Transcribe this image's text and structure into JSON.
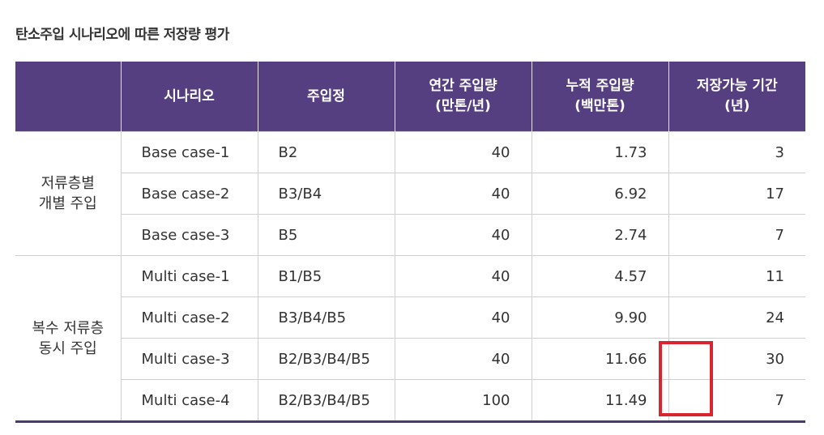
{
  "title": "탄소주입 시나리오에 따른 저장량 평가",
  "header": {
    "group": "",
    "scenario": "시나리오",
    "well": "주입정",
    "annual_line1": "연간 주입량",
    "annual_line2": "(만톤/년)",
    "cumulative_line1": "누적 주입량",
    "cumulative_line2": "(백만톤)",
    "duration_line1": "저장가능 기간",
    "duration_line2": "(년)"
  },
  "groups": [
    {
      "label_line1": "저류층별",
      "label_line2": "개별 주입",
      "rows": [
        {
          "scenario": "Base case-1",
          "well": "B2",
          "annual": "40",
          "cumulative": "1.73",
          "duration": "3"
        },
        {
          "scenario": "Base case-2",
          "well": "B3/B4",
          "annual": "40",
          "cumulative": "6.92",
          "duration": "17"
        },
        {
          "scenario": "Base case-3",
          "well": "B5",
          "annual": "40",
          "cumulative": "2.74",
          "duration": "7"
        }
      ]
    },
    {
      "label_line1": "복수 저류층",
      "label_line2": "동시 주입",
      "rows": [
        {
          "scenario": "Multi case-1",
          "well": "B1/B5",
          "annual": "40",
          "cumulative": "4.57",
          "duration": "11"
        },
        {
          "scenario": "Multi case-2",
          "well": "B3/B4/B5",
          "annual": "40",
          "cumulative": "9.90",
          "duration": "24"
        },
        {
          "scenario": "Multi case-3",
          "well": "B2/B3/B4/B5",
          "annual": "40",
          "cumulative": "11.66",
          "duration": "30"
        },
        {
          "scenario": "Multi case-4",
          "well": "B2/B3/B4/B5",
          "annual": "100",
          "cumulative": "11.49",
          "duration": "7"
        }
      ]
    }
  ],
  "highlight_color": "#d8252f",
  "header_color": "#553f80"
}
